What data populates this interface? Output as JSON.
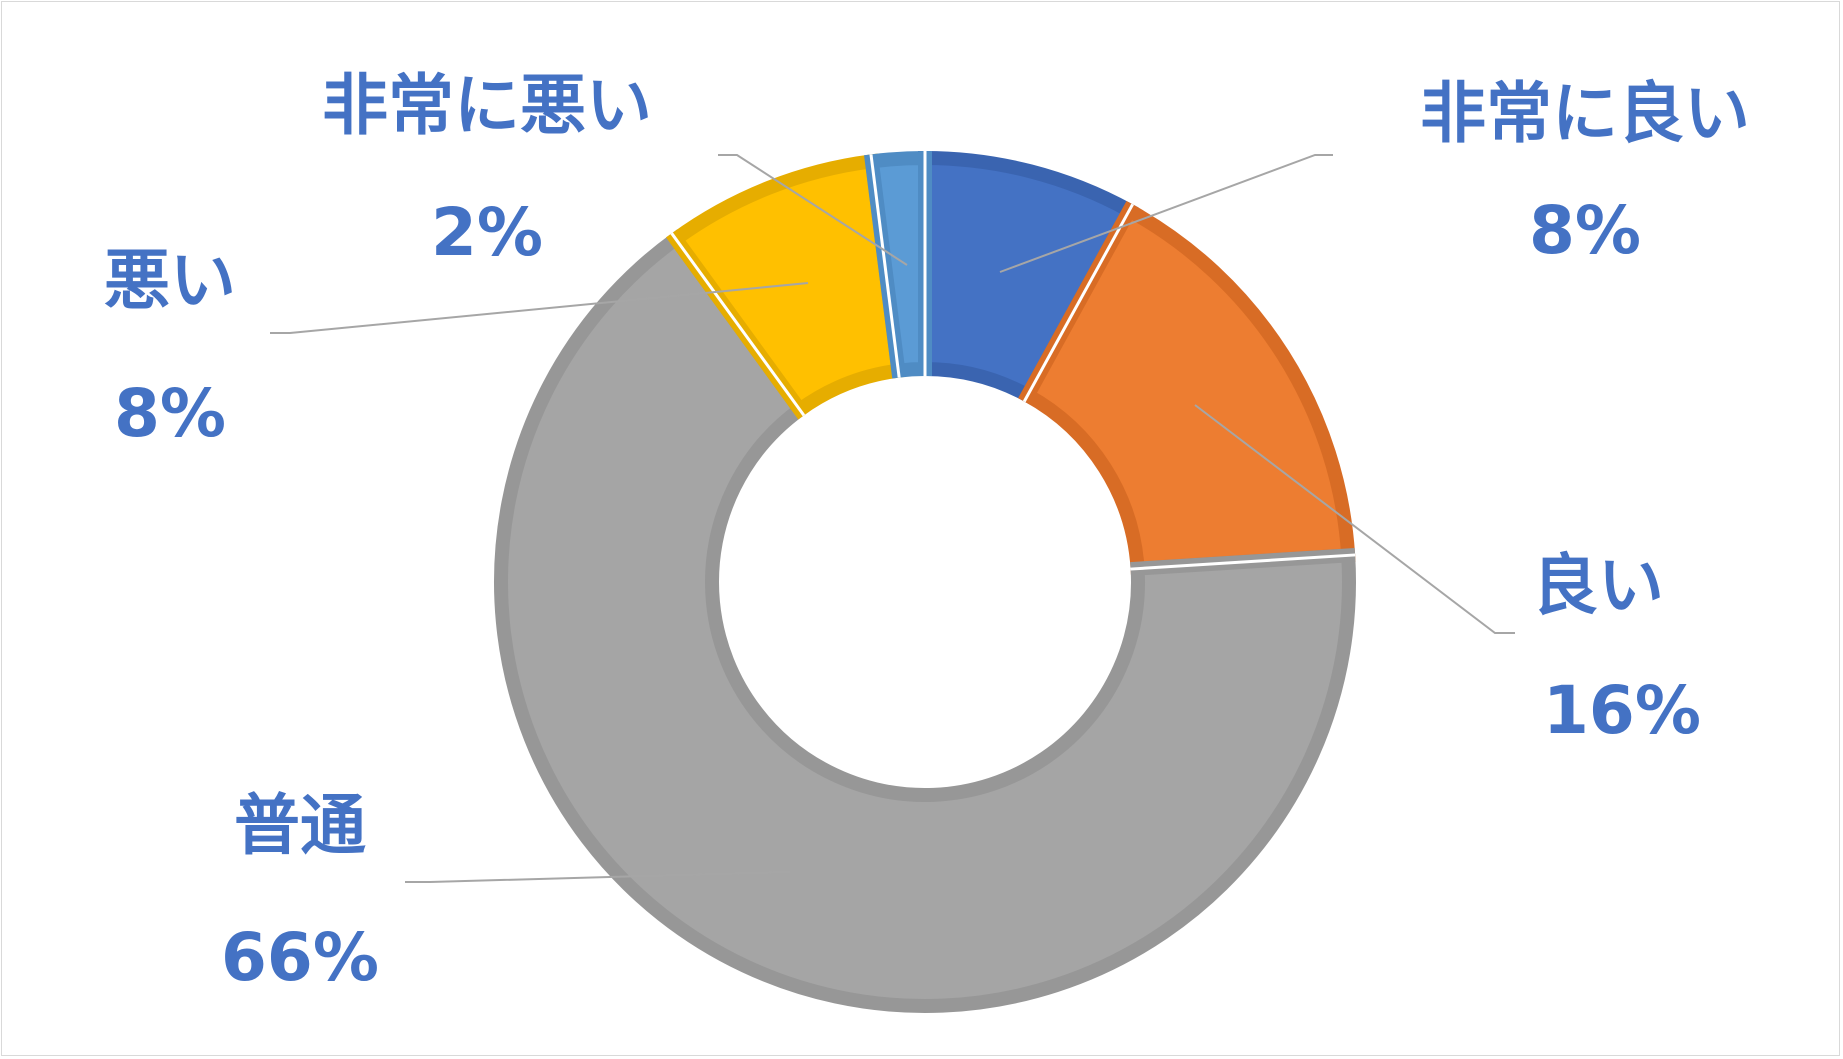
{
  "chart_data": {
    "type": "pie",
    "variant": "donut",
    "title": "",
    "legend": "none",
    "slices": [
      {
        "label": "非常に良い",
        "value": 8,
        "pct_text": "8%",
        "color": "#4472c4",
        "border": "#3a64b0"
      },
      {
        "label": "良い",
        "value": 16,
        "pct_text": "16%",
        "color": "#ed7d31",
        "border": "#d86c25"
      },
      {
        "label": "普通",
        "value": 66,
        "pct_text": "66%",
        "color": "#a5a5a5",
        "border": "#979797"
      },
      {
        "label": "悪い",
        "value": 8,
        "pct_text": "8%",
        "color": "#ffc000",
        "border": "#e6ad00"
      },
      {
        "label": "非常に悪い",
        "value": 2,
        "pct_text": "2%",
        "color": "#5b9bd5",
        "border": "#4f8cc4"
      }
    ],
    "label_color": "#4472c4",
    "leader_line_color": "#a6a6a6"
  }
}
